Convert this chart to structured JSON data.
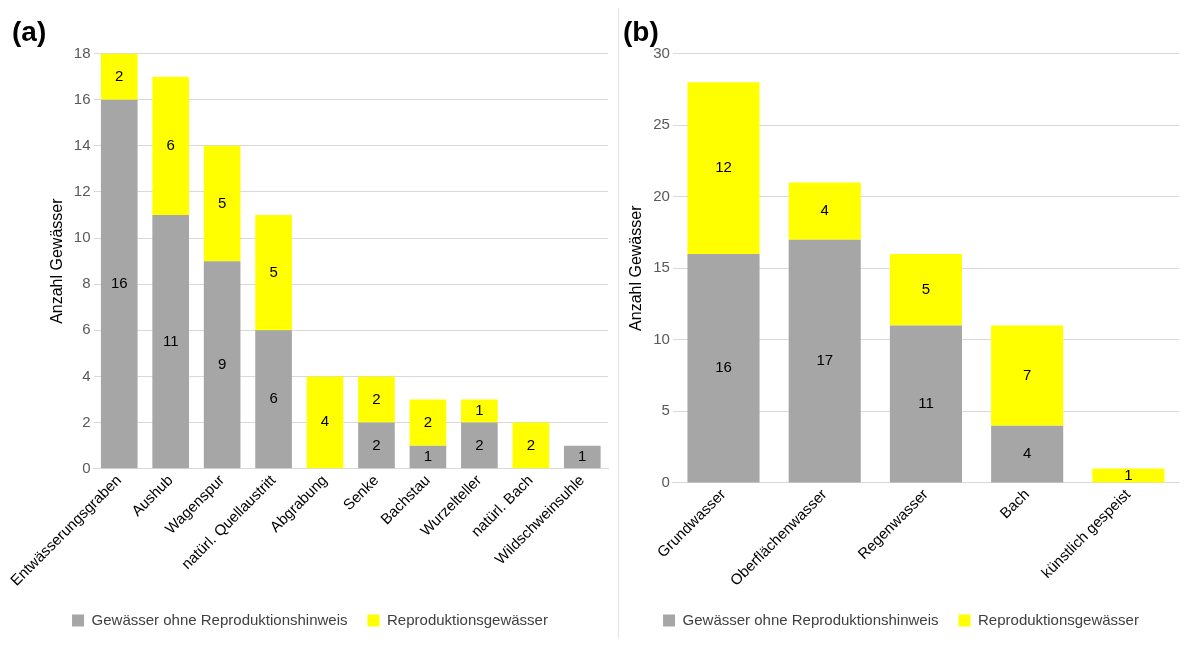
{
  "chart_data": [
    {
      "type": "bar",
      "title": "(a)",
      "ylabel": "Anzahl Gewässer",
      "categories": [
        "Entwässerungsgraben",
        "Aushub",
        "Wagenspur",
        "natürl. Quellaustritt",
        "Abgrabung",
        "Senke",
        "Bachstau",
        "Wurzelteller",
        "natürl. Bach",
        "Wildschweinsuhle"
      ],
      "stacked": true,
      "series": [
        {
          "name": "Gewässer ohne Reproduktionshinweis",
          "color": "#a6a6a6",
          "values": [
            16,
            11,
            9,
            6,
            null,
            2,
            1,
            2,
            null,
            1
          ]
        },
        {
          "name": "Reproduktionsgewässer",
          "color": "#ffff00",
          "values": [
            2,
            6,
            5,
            5,
            4,
            2,
            2,
            1,
            2,
            null
          ]
        }
      ],
      "ylim": [
        0,
        18
      ],
      "yticks": [
        0,
        2,
        4,
        6,
        8,
        10,
        12,
        14,
        16,
        18
      ],
      "grid": "y",
      "legend": "bottom",
      "data_labels": true
    },
    {
      "type": "bar",
      "title": "(b)",
      "ylabel": "Anzahl Gewässer",
      "categories": [
        "Grundwasser",
        "Oberflächenwasser",
        "Regenwasser",
        "Bach",
        "künstlich gespeist"
      ],
      "stacked": true,
      "series": [
        {
          "name": "Gewässer ohne Reproduktionshinweis",
          "color": "#a6a6a6",
          "values": [
            16,
            17,
            11,
            4,
            null
          ]
        },
        {
          "name": "Reproduktionsgewässer",
          "color": "#ffff00",
          "values": [
            12,
            4,
            5,
            7,
            1
          ]
        }
      ],
      "ylim": [
        0,
        30
      ],
      "yticks": [
        0,
        5,
        10,
        15,
        20,
        25,
        30
      ],
      "grid": "y",
      "legend": "bottom",
      "data_labels": true
    }
  ]
}
